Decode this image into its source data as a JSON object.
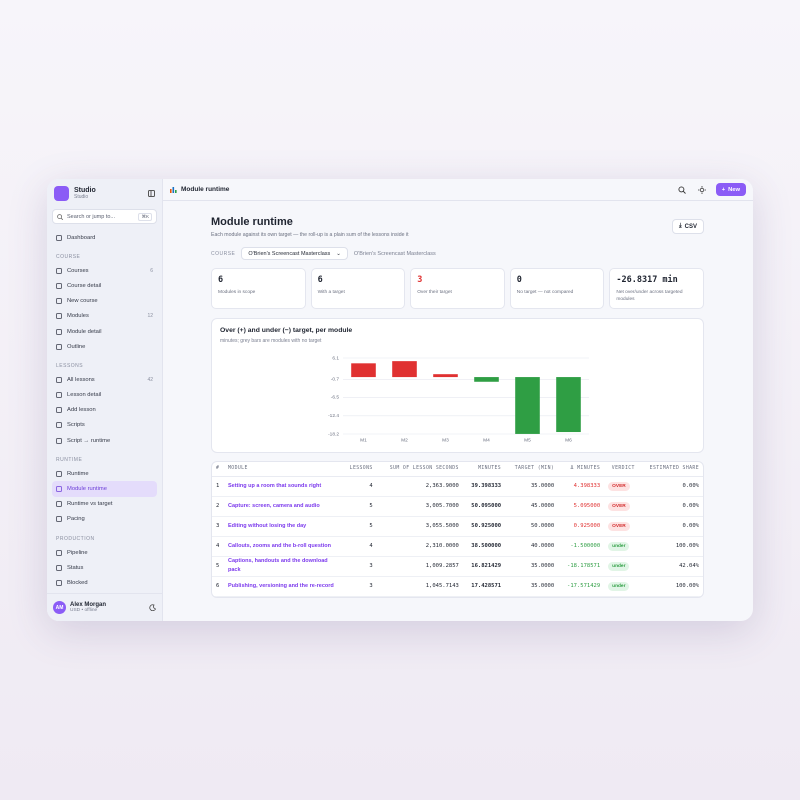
{
  "app": {
    "name": "Studio",
    "workspace": "Studio"
  },
  "search": {
    "placeholder": "Search or jump to...",
    "shortcut": "⌘K"
  },
  "nav": {
    "top": "Dashboard",
    "sections": [
      {
        "title": "COURSE",
        "items": [
          {
            "label": "Courses",
            "badge": 6
          },
          {
            "label": "Course detail"
          },
          {
            "label": "New course"
          },
          {
            "label": "Modules",
            "badge": 12
          },
          {
            "label": "Module detail"
          },
          {
            "label": "Outline"
          }
        ]
      },
      {
        "title": "LESSONS",
        "items": [
          {
            "label": "All lessons",
            "badge": 42
          },
          {
            "label": "Lesson detail"
          },
          {
            "label": "Add lesson"
          },
          {
            "label": "Scripts"
          },
          {
            "label": "Script → runtime"
          }
        ]
      },
      {
        "title": "RUNTIME",
        "items": [
          {
            "label": "Runtime"
          },
          {
            "label": "Module runtime",
            "active": true
          },
          {
            "label": "Runtime vs target"
          },
          {
            "label": "Pacing"
          }
        ]
      },
      {
        "title": "PRODUCTION",
        "items": [
          {
            "label": "Pipeline"
          },
          {
            "label": "Status"
          },
          {
            "label": "Blocked"
          }
        ]
      }
    ]
  },
  "user": {
    "initials": "AM",
    "name": "Alex Morgan",
    "status": "USD • offline"
  },
  "topbar": {
    "title": "Module runtime",
    "new_button": "New"
  },
  "header": {
    "title": "Module runtime",
    "subtitle": "Each module against its own target — the roll-up is a plain sum of the lessons inside it",
    "export_button": "CSV",
    "filter_label": "COURSE",
    "course_select": "O'Brien's Screencast Masterclass",
    "course_name": "O'Brien's Screencast Masterclass"
  },
  "stats": [
    {
      "value": "6",
      "label": "Modules in scope"
    },
    {
      "value": "6",
      "label": "With a target"
    },
    {
      "value": "3",
      "label": "Over their target",
      "highlight": true
    },
    {
      "value": "0",
      "label": "No target — not compared"
    },
    {
      "value": "-26.8317 min",
      "label": "Net over/under across targeted modules"
    }
  ],
  "chart_data": {
    "type": "bar",
    "title": "Over (+) and under (−) target, per module",
    "subtitle": "minutes; grey bars are modules with no target",
    "categories": [
      "M1",
      "M2",
      "M3",
      "M4",
      "M5",
      "M6"
    ],
    "values": [
      4.398333,
      5.095,
      0.925,
      -1.5,
      -18.178571,
      -17.571429
    ],
    "color_over": "#e03131",
    "color_under": "#2f9e44",
    "ylim": [
      -18.2,
      6.1
    ],
    "yticks": [
      6.1,
      -0.7,
      -6.5,
      -12.4,
      -18.2
    ],
    "grid": true
  },
  "table": {
    "columns": [
      "#",
      "MODULE",
      "LESSONS",
      "SUM OF LESSON SECONDS",
      "MINUTES",
      "TARGET (MIN)",
      "Δ MINUTES",
      "VERDICT",
      "ESTIMATED SHARE"
    ],
    "rows": [
      [
        "1",
        "Setting up a room that sounds right",
        "4",
        "2,363.9000",
        "39.398333",
        "35.0000",
        "4.398333",
        "OVER",
        "0.00%"
      ],
      [
        "2",
        "Capture: screen, camera and audio",
        "5",
        "3,005.7000",
        "50.095000",
        "45.0000",
        "5.095000",
        "OVER",
        "0.00%"
      ],
      [
        "3",
        "Editing without losing the day",
        "5",
        "3,055.5000",
        "50.925000",
        "50.0000",
        "0.925000",
        "OVER",
        "0.00%"
      ],
      [
        "4",
        "Callouts, zooms and the b-roll question",
        "4",
        "2,310.0000",
        "38.500000",
        "40.0000",
        "-1.500000",
        "under",
        "100.00%"
      ],
      [
        "5",
        "Captions, handouts and the download pack",
        "3",
        "1,009.2857",
        "16.821429",
        "35.0000",
        "-18.178571",
        "under",
        "42.04%"
      ],
      [
        "6",
        "Publishing, versioning and the re-record",
        "3",
        "1,045.7143",
        "17.428571",
        "35.0000",
        "-17.571429",
        "under",
        "100.00%"
      ]
    ]
  }
}
